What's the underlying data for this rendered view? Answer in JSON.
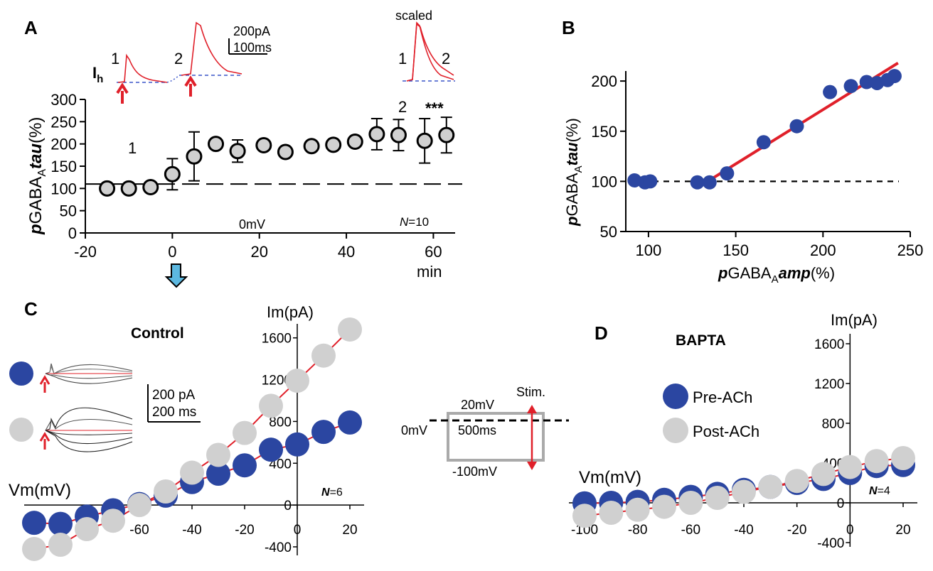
{
  "panel_labels": {
    "a": "A",
    "b": "B",
    "c": "C",
    "d": "D"
  },
  "colors": {
    "blue": "#2b46a1",
    "gray": "#d0d0d0",
    "red": "#e0202a",
    "dash_blue": "#3a55c8",
    "arrow_cyan": "#5cb8e0"
  },
  "chart_data": [
    {
      "id": "A",
      "type": "scatter",
      "ylabel_prefix": "p",
      "ylabel_main": "GABA",
      "ylabel_sub": "A",
      "ylabel_em": "tau",
      "ylabel_unit": "(%)",
      "xlabel": "min",
      "xlim": [
        -20,
        65
      ],
      "ylim": [
        0,
        300
      ],
      "xticks": [
        "-20",
        "0",
        "20",
        "40",
        "60"
      ],
      "yticks": [
        "0",
        "50",
        "100",
        "150",
        "200",
        "250",
        "300"
      ],
      "x": [
        -15,
        -10,
        -5,
        0,
        5,
        10,
        15,
        21,
        26,
        32,
        37,
        42,
        47,
        52,
        58,
        63
      ],
      "y": [
        100,
        100,
        103,
        132,
        172,
        200,
        184,
        197,
        182,
        195,
        198,
        205,
        222,
        220,
        207,
        220
      ],
      "err": [
        0,
        0,
        0,
        35,
        55,
        0,
        25,
        0,
        0,
        0,
        0,
        0,
        35,
        35,
        50,
        40
      ],
      "baseline": 110,
      "marker_1": "1",
      "marker_2": "2",
      "significance": "***",
      "hold_label": "0mV",
      "n_label_italic": "N",
      "n_label_value": "=10",
      "inset_ih_main": "I",
      "inset_ih_sub": "h",
      "inset_trace1": "1",
      "inset_trace2": "2",
      "scalebar_amp": "200pA",
      "scalebar_time": "100ms",
      "scaled_label": "scaled",
      "scaled_1": "1",
      "scaled_2": "2"
    },
    {
      "id": "B",
      "type": "scatter",
      "xlabel_prefix": "p",
      "xlabel_main": "GABA",
      "xlabel_sub": "A",
      "xlabel_em": "amp",
      "xlabel_unit": "(%)",
      "ylabel_prefix": "p",
      "ylabel_main": "GABA",
      "ylabel_sub": "A",
      "ylabel_em": "tau",
      "ylabel_unit": "(%)",
      "xlim": [
        87,
        250
      ],
      "ylim": [
        50,
        210
      ],
      "xticks": [
        "100",
        "150",
        "200",
        "250"
      ],
      "yticks": [
        "50",
        "100",
        "150",
        "200"
      ],
      "x": [
        92,
        98,
        101,
        128,
        135,
        145,
        166,
        185,
        204,
        216,
        225,
        231,
        237,
        241
      ],
      "y": [
        101,
        99,
        100,
        99,
        99,
        108,
        139,
        155,
        189,
        195,
        199,
        198,
        201,
        205
      ],
      "fit": {
        "x": [
          133,
          243
        ],
        "y": [
          99,
          218
        ]
      },
      "baseline": 100
    },
    {
      "id": "C",
      "type": "scatter",
      "title": "Control",
      "xlabel": "Vm(mV)",
      "ylabel": "Im(pA)",
      "xlim": [
        -100,
        20
      ],
      "ylim": [
        -400,
        1700
      ],
      "xticks": [
        "-60",
        "-40",
        "-20",
        "0",
        "20"
      ],
      "yticks": [
        "-400",
        "0",
        "400",
        "800",
        "1200",
        "1600"
      ],
      "series": [
        {
          "name": "Pre-ACh",
          "x": [
            -100,
            -90,
            -80,
            -70,
            -60,
            -50,
            -40,
            -30,
            -20,
            -10,
            0,
            10,
            20
          ],
          "y": [
            -170,
            -180,
            -110,
            -50,
            10,
            90,
            220,
            300,
            380,
            530,
            580,
            700,
            790
          ]
        },
        {
          "name": "Post-ACh",
          "x": [
            -100,
            -90,
            -80,
            -70,
            -60,
            -50,
            -40,
            -30,
            -20,
            -10,
            0,
            10,
            20
          ],
          "y": [
            -420,
            -380,
            -230,
            -150,
            0,
            130,
            310,
            480,
            690,
            950,
            1190,
            1430,
            1680
          ]
        }
      ],
      "n_label_italic": "N",
      "n_label_value": "=6",
      "scalebar_amp": "200 pA",
      "scalebar_time": "200 ms"
    },
    {
      "id": "D",
      "type": "scatter",
      "title": "BAPTA",
      "xlabel": "Vm(mV)",
      "ylabel": "Im(pA)",
      "xlim": [
        -100,
        20
      ],
      "ylim": [
        -400,
        1700
      ],
      "xticks": [
        "-100",
        "-80",
        "-60",
        "-40",
        "-20",
        "0",
        "20"
      ],
      "yticks": [
        "-400",
        "0",
        "400",
        "800",
        "1200",
        "1600"
      ],
      "series": [
        {
          "name": "Pre-ACh",
          "x": [
            -100,
            -90,
            -80,
            -70,
            -60,
            -50,
            -40,
            -30,
            -20,
            -10,
            0,
            10,
            20
          ],
          "y": [
            -5,
            0,
            10,
            30,
            60,
            90,
            130,
            160,
            200,
            240,
            300,
            370,
            380
          ]
        },
        {
          "name": "Post-ACh",
          "x": [
            -100,
            -90,
            -80,
            -70,
            -60,
            -50,
            -40,
            -30,
            -20,
            -10,
            0,
            10,
            20
          ],
          "y": [
            -130,
            -100,
            -70,
            -40,
            0,
            50,
            110,
            160,
            220,
            290,
            360,
            420,
            450
          ]
        }
      ],
      "legend": [
        "Pre-ACh",
        "Post-ACh"
      ],
      "n_label_italic": "N",
      "n_label_value": "=4"
    }
  ],
  "protocol": {
    "step_up": "20mV",
    "hold": "0mV",
    "duration": "500ms",
    "step_down": "-100mV",
    "stim": "Stim."
  }
}
